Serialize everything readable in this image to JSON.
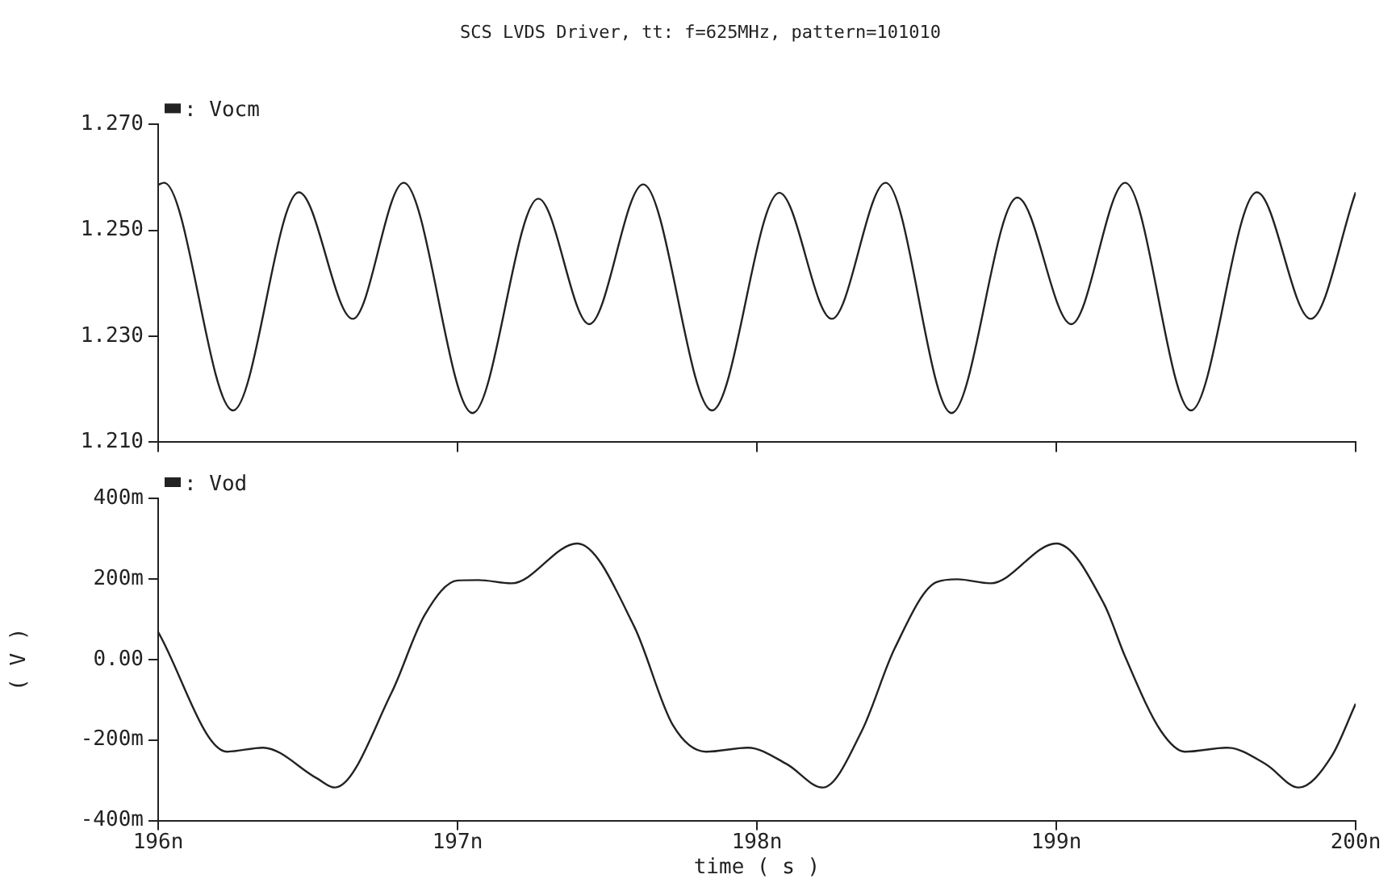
{
  "chart_data": [
    {
      "type": "line",
      "title": "SCS LVDS Driver, tt: f=625MHz, pattern=101010",
      "legend": "top left",
      "marker": "none",
      "line_style": "solid",
      "grid": false,
      "tick_labels": "y",
      "xlim": [
        196,
        200
      ],
      "xticks": [
        {
          "value": 196,
          "label": null
        },
        {
          "value": 197,
          "label": null
        },
        {
          "value": 198,
          "label": null
        },
        {
          "value": 199,
          "label": null
        },
        {
          "value": 200,
          "label": null
        }
      ],
      "ylim": [
        1.21,
        1.27
      ],
      "yticks": [
        {
          "value": 1.21,
          "label": "1.210"
        },
        {
          "value": 1.23,
          "label": "1.230"
        },
        {
          "value": 1.25,
          "label": "1.250"
        },
        {
          "value": 1.27,
          "label": "1.270"
        }
      ],
      "series": [
        {
          "name": ": Vocm",
          "color": "#222222",
          "x": [
            196,
            196.02,
            196.25,
            196.47,
            196.65,
            196.82,
            197.05,
            197.27,
            197.44,
            197.62,
            197.85,
            198.075,
            198.25,
            198.43,
            198.65,
            198.87,
            199.05,
            199.23,
            199.45,
            199.67,
            199.85,
            200
          ],
          "values": [
            1.2586,
            1.259,
            1.216,
            1.2572,
            1.2333,
            1.259,
            1.2155,
            1.256,
            1.2323,
            1.2587,
            1.216,
            1.2571,
            1.2333,
            1.259,
            1.2155,
            1.2562,
            1.2323,
            1.259,
            1.216,
            1.2572,
            1.2333,
            1.2572
          ]
        }
      ]
    },
    {
      "type": "line",
      "xlabel": "time ( s )",
      "ylabel": "( V )",
      "legend": "top left",
      "marker": "none",
      "line_style": "solid",
      "grid": false,
      "xlim": [
        196,
        200
      ],
      "xticks": [
        {
          "value": 196,
          "label": "196n"
        },
        {
          "value": 197,
          "label": "197n"
        },
        {
          "value": 198,
          "label": "198n"
        },
        {
          "value": 199,
          "label": "199n"
        },
        {
          "value": 200,
          "label": "200n"
        }
      ],
      "ylim": [
        -400,
        400
      ],
      "yticks": [
        {
          "value": -400,
          "label": "-400m"
        },
        {
          "value": -200,
          "label": "-200m"
        },
        {
          "value": 0,
          "label": "0.00"
        },
        {
          "value": 200,
          "label": "200m"
        },
        {
          "value": 400,
          "label": "400m"
        }
      ],
      "series": [
        {
          "name": ": Vod",
          "color": "#222222",
          "x": [
            196,
            196.23,
            196.35,
            196.53,
            196.59,
            196.78,
            196.89,
            197.0,
            197.07,
            197.18,
            197.4,
            197.59,
            197.72,
            197.83,
            197.97,
            198.1,
            198.22,
            198.35,
            198.46,
            198.6,
            198.67,
            198.78,
            199.0,
            199.16,
            199.23,
            199.35,
            199.43,
            199.57,
            199.7,
            199.81,
            199.92,
            200
          ],
          "values": [
            68,
            -229,
            -219,
            -295,
            -318,
            -82,
            110,
            196,
            197,
            189,
            288,
            82,
            -164,
            -229,
            -219,
            -260,
            -318,
            -178,
            27,
            192,
            199,
            189,
            288,
            137,
            7,
            -178,
            -229,
            -219,
            -260,
            -318,
            -240,
            -110
          ]
        }
      ]
    }
  ]
}
